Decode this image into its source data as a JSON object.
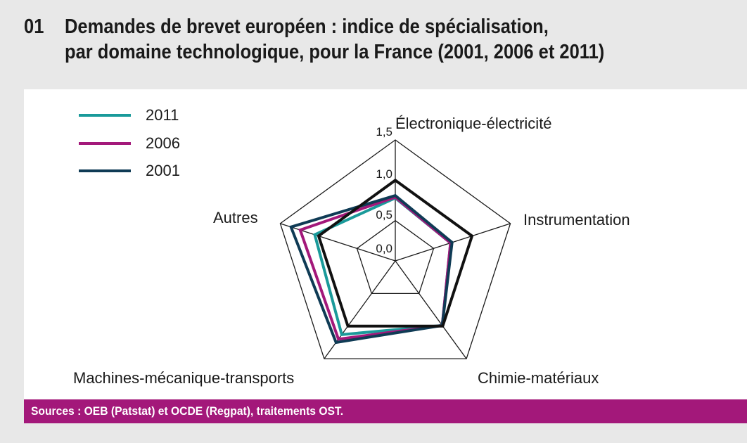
{
  "title": {
    "number": "01",
    "line1": "Demandes de brevet européen : indice de spécialisation,",
    "line2": "par domaine technologique, pour la France (2001, 2006 et 2011)"
  },
  "source": "Sources : OEB (Patstat) et OCDE (Regpat), traitements OST.",
  "chart_data": {
    "type": "radar",
    "categories": [
      "Électronique-électricité",
      "Instrumentation",
      "Chimie-matériaux",
      "Machines-mécanique-transports",
      "Autres"
    ],
    "ticks": [
      0.0,
      0.5,
      1.0,
      1.5
    ],
    "tick_labels": [
      "0,0",
      "0,5",
      "1,0",
      "1,5"
    ],
    "rlim": [
      0,
      1.5
    ],
    "legend_position": "top-left",
    "series": [
      {
        "name": "2011",
        "color": "#1a9a9a",
        "values": [
          0.78,
          0.72,
          0.99,
          1.13,
          1.05
        ]
      },
      {
        "name": "2006",
        "color": "#a3187a",
        "values": [
          0.79,
          0.72,
          0.99,
          1.2,
          1.24
        ]
      },
      {
        "name": "2001",
        "color": "#0f3b55",
        "values": [
          0.81,
          0.74,
          0.99,
          1.25,
          1.36
        ]
      }
    ],
    "reference": {
      "value": 1.0,
      "color": "#111111"
    }
  }
}
